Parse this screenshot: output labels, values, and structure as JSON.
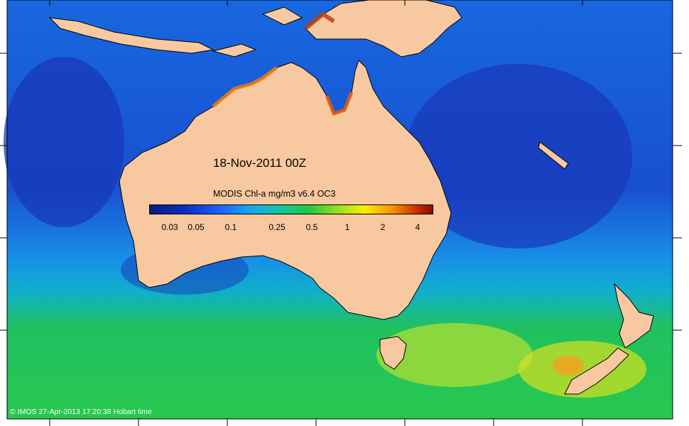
{
  "map": {
    "date_label": "18-Nov-2011 00Z",
    "colorbar": {
      "title": "MODIS Chl-a mg/m3 v6.4 OC3",
      "ticks": [
        "0.03",
        "0.05",
        "0.1",
        "0.25",
        "0.5",
        "1",
        "2",
        "4"
      ],
      "colors": [
        "#0a1a80",
        "#1a60ff",
        "#18a8f0",
        "#20c840",
        "#f8f000",
        "#f89000",
        "#801000"
      ]
    },
    "credit": "© IMOS 27-Apr-2013 17:20:38 Hobart time",
    "land_color": "#f8c8a0",
    "ocean_colors": [
      "#1848d0",
      "#18a0e8",
      "#10b8b0",
      "#20c840",
      "#e8e820"
    ]
  }
}
